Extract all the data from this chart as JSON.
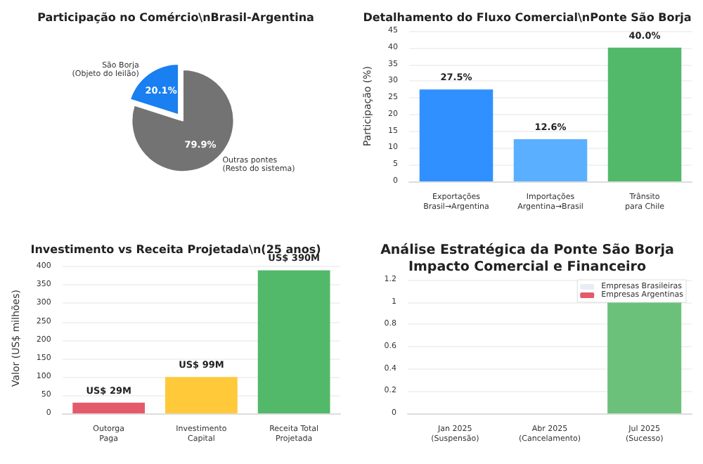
{
  "chart_data": [
    {
      "type": "pie",
      "title": "Participação no Comércio\\nBrasil-Argentina",
      "categories": [
        "São Borja\n(Objeto do leilão)",
        "Outras pontes\n(Resto do sistema)"
      ],
      "values": [
        20.1,
        79.9
      ],
      "colors": [
        "#1a7ff0",
        "#737373"
      ],
      "value_labels": [
        "20.1%",
        "79.9%"
      ]
    },
    {
      "type": "bar",
      "title": "Detalhamento do Fluxo Comercial\\nPonte São Borja",
      "ylabel": "Participação (%)",
      "categories": [
        "Exportações\nBrasil→Argentina",
        "Importações\nArgentina→Brasil",
        "Trânsito\npara Chile"
      ],
      "values": [
        27.5,
        12.6,
        40.0
      ],
      "colors": [
        "#3090ff",
        "#5ab0ff",
        "#52b96a"
      ],
      "value_labels": [
        "27.5%",
        "12.6%",
        "40.0%"
      ],
      "ylim": [
        0,
        45
      ],
      "yticks": [
        0,
        5,
        10,
        15,
        20,
        25,
        30,
        35,
        40,
        45
      ],
      "grid": "y"
    },
    {
      "type": "bar",
      "title": "Investimento vs Receita Projetada\\n(25 anos)",
      "ylabel": "Valor (US$ milhões)",
      "categories": [
        "Outorga\nPaga",
        "Investimento\nCapital",
        "Receita Total\nProjetada"
      ],
      "values": [
        29,
        99,
        390
      ],
      "colors": [
        "#e45a6a",
        "#ffc93a",
        "#52b96a"
      ],
      "value_labels": [
        "US$ 29M",
        "US$ 99M",
        "US$ 390M"
      ],
      "ylim": [
        0,
        410
      ],
      "yticks": [
        0,
        50,
        100,
        150,
        200,
        250,
        300,
        350,
        400
      ],
      "grid": "y"
    },
    {
      "type": "bar",
      "title": "Análise Estratégica da Ponte São Borja\nImpacto Comercial e Financeiro",
      "categories": [
        "Jan 2025\n(Suspensão)",
        "Abr 2025\n(Cancelamento)",
        "Jul 2025\n(Sucesso)"
      ],
      "stacked": true,
      "series": [
        {
          "name": "Empresas Brasileiras",
          "color": "#e8eef5",
          "values": [
            0,
            0,
            0
          ]
        },
        {
          "name": "Empresas Argentinas",
          "color": "#e45a6a",
          "values": [
            0,
            0,
            0
          ]
        },
        {
          "color": "#6cc17a",
          "values": [
            0,
            0,
            1
          ]
        }
      ],
      "ylim": [
        0,
        1.2
      ],
      "yticks": [
        0,
        0.2,
        0.4,
        0.6,
        0.8,
        1.0,
        1.2
      ],
      "grid": "y",
      "legend": "top right"
    }
  ]
}
